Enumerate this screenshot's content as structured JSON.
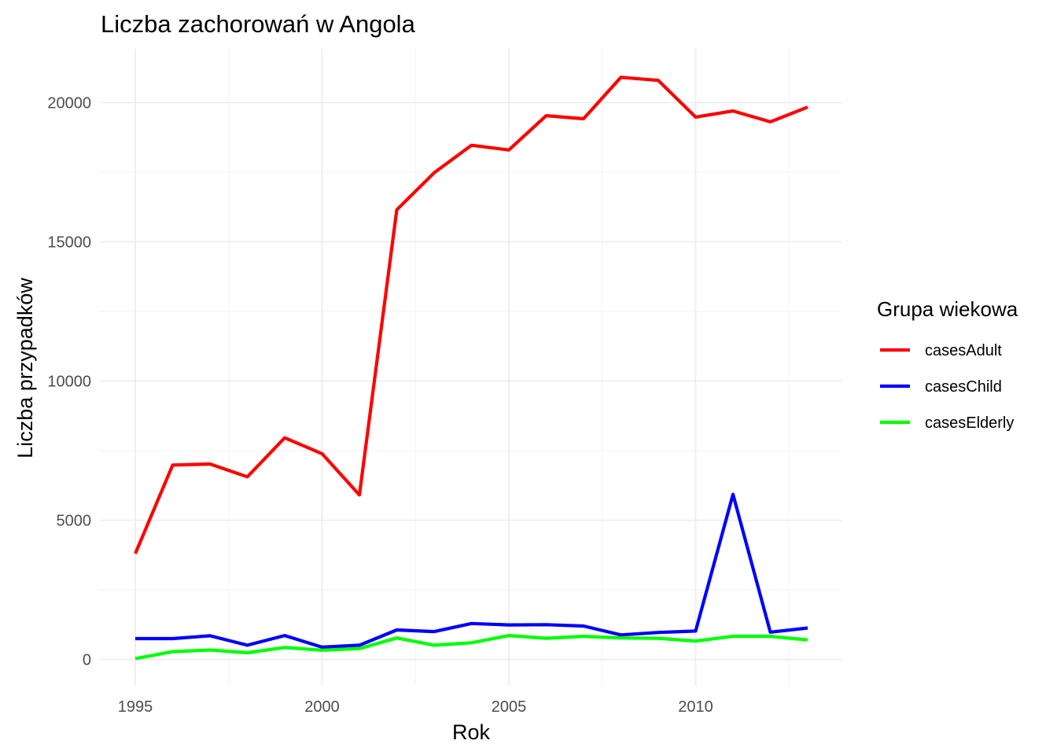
{
  "chart_data": {
    "type": "line",
    "title": "Liczba zachorowań w Angola",
    "xlabel": "Rok",
    "ylabel": "Liczba przypadków",
    "xlim": [
      1995,
      2013
    ],
    "ylim": [
      0,
      21000
    ],
    "x_ticks": [
      1995,
      2000,
      2005,
      2010
    ],
    "y_ticks": [
      0,
      5000,
      10000,
      15000,
      20000
    ],
    "x_tick_labels": [
      "1995",
      "2000",
      "2005",
      "2010"
    ],
    "y_tick_labels": [
      "0",
      "5000",
      "10000",
      "15000",
      "20000"
    ],
    "grid": true,
    "legend": {
      "title": "Grupa wiekowa",
      "position": "right"
    },
    "x": [
      1995,
      1996,
      1997,
      1998,
      1999,
      2000,
      2001,
      2002,
      2003,
      2004,
      2005,
      2006,
      2007,
      2008,
      2009,
      2010,
      2011,
      2012,
      2013
    ],
    "series": [
      {
        "name": "casesAdult",
        "color": "#ff0000",
        "values": [
          3800,
          6980,
          7020,
          6560,
          7960,
          7390,
          5910,
          16150,
          17480,
          18470,
          18300,
          19530,
          19420,
          20910,
          20800,
          19480,
          19700,
          19310,
          19840
        ]
      },
      {
        "name": "casesChild",
        "color": "#0000ff",
        "values": [
          750,
          750,
          850,
          510,
          860,
          440,
          510,
          1060,
          1000,
          1290,
          1240,
          1250,
          1200,
          880,
          970,
          1020,
          5930,
          980,
          1130
        ]
      },
      {
        "name": "casesElderly",
        "color": "#00ff00",
        "values": [
          30,
          280,
          340,
          240,
          430,
          330,
          390,
          770,
          510,
          600,
          860,
          760,
          830,
          770,
          760,
          660,
          830,
          830,
          700
        ]
      }
    ]
  }
}
